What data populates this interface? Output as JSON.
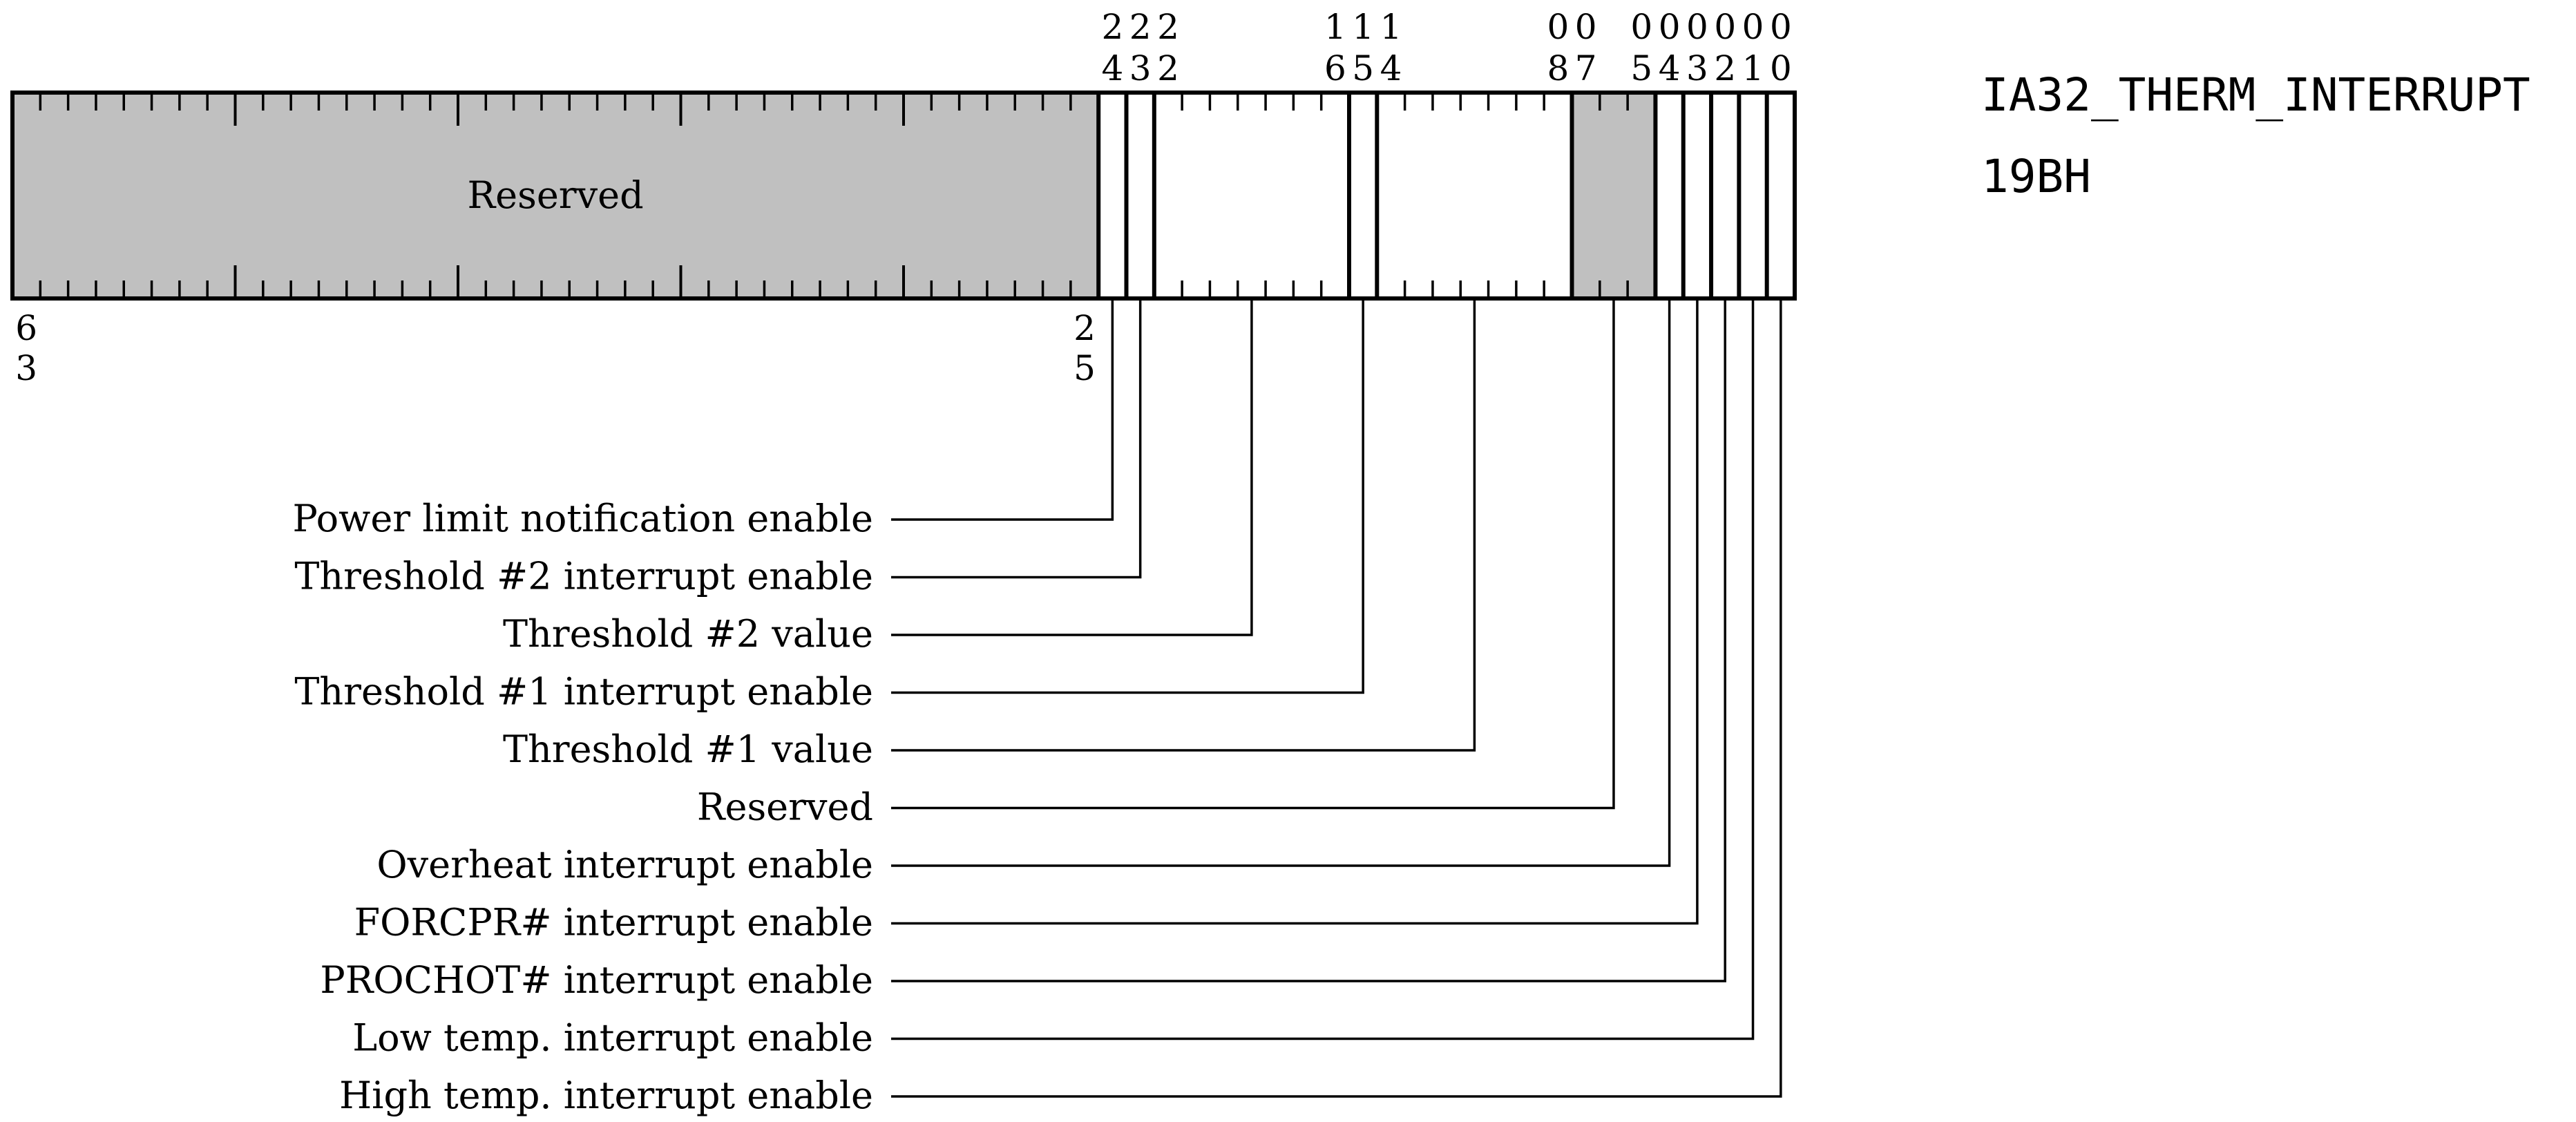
{
  "register": {
    "name": "IA32_THERM_INTERRUPT",
    "address": "19BH",
    "width_bits": 64
  },
  "top_bit_labels": [
    {
      "bit": 24,
      "digits": [
        "2",
        "4"
      ]
    },
    {
      "bit": 23,
      "digits": [
        "2",
        "3"
      ]
    },
    {
      "bit": 22,
      "digits": [
        "2",
        "2"
      ]
    },
    {
      "bit": 16,
      "digits": [
        "1",
        "6"
      ]
    },
    {
      "bit": 15,
      "digits": [
        "1",
        "5"
      ]
    },
    {
      "bit": 14,
      "digits": [
        "1",
        "4"
      ]
    },
    {
      "bit": 8,
      "digits": [
        "0",
        "8"
      ]
    },
    {
      "bit": 7,
      "digits": [
        "0",
        "7"
      ]
    },
    {
      "bit": 5,
      "digits": [
        "0",
        "5"
      ]
    },
    {
      "bit": 4,
      "digits": [
        "0",
        "4"
      ]
    },
    {
      "bit": 3,
      "digits": [
        "0",
        "3"
      ]
    },
    {
      "bit": 2,
      "digits": [
        "0",
        "2"
      ]
    },
    {
      "bit": 1,
      "digits": [
        "0",
        "1"
      ]
    },
    {
      "bit": 0,
      "digits": [
        "0",
        "0"
      ]
    }
  ],
  "bottom_bit_labels": [
    {
      "bit": 63,
      "digits": [
        "6",
        "3"
      ]
    },
    {
      "bit": 25,
      "digits": [
        "2",
        "5"
      ]
    }
  ],
  "fields": [
    {
      "hi": 63,
      "lo": 25,
      "label": "Reserved",
      "shaded": true,
      "inline_label": true
    },
    {
      "hi": 24,
      "lo": 24,
      "label": "Power limit notification enable",
      "shaded": false
    },
    {
      "hi": 23,
      "lo": 23,
      "label": "Threshold #2 interrupt enable",
      "shaded": false
    },
    {
      "hi": 22,
      "lo": 16,
      "label": "Threshold #2 value",
      "shaded": false
    },
    {
      "hi": 15,
      "lo": 15,
      "label": "Threshold #1 interrupt enable",
      "shaded": false
    },
    {
      "hi": 14,
      "lo": 8,
      "label": "Threshold #1 value",
      "shaded": false
    },
    {
      "hi": 7,
      "lo": 5,
      "label": "Reserved",
      "shaded": true
    },
    {
      "hi": 4,
      "lo": 4,
      "label": "Overheat interrupt enable",
      "shaded": false
    },
    {
      "hi": 3,
      "lo": 3,
      "label": "FORCPR# interrupt enable",
      "shaded": false
    },
    {
      "hi": 2,
      "lo": 2,
      "label": "PROCHOT# interrupt enable",
      "shaded": false
    },
    {
      "hi": 1,
      "lo": 1,
      "label": "Low temp. interrupt enable",
      "shaded": false
    },
    {
      "hi": 0,
      "lo": 0,
      "label": "High temp. interrupt enable",
      "shaded": false
    }
  ],
  "callouts": [
    {
      "label": "Power limit notification enable",
      "bit": 24
    },
    {
      "label": "Threshold #2 interrupt enable",
      "bit": 23
    },
    {
      "label": "Threshold #2 value",
      "bit": 19
    },
    {
      "label": "Threshold #1 interrupt enable",
      "bit": 15
    },
    {
      "label": "Threshold #1 value",
      "bit": 11
    },
    {
      "label": "Reserved",
      "bit": 6
    },
    {
      "label": "Overheat interrupt enable",
      "bit": 4
    },
    {
      "label": "FORCPR# interrupt enable",
      "bit": 3
    },
    {
      "label": "PROCHOT# interrupt enable",
      "bit": 2
    },
    {
      "label": "Low temp. interrupt enable",
      "bit": 1
    },
    {
      "label": "High temp. interrupt enable",
      "bit": 0
    }
  ],
  "colors": {
    "shade": "#c0c0c0",
    "line": "#000000",
    "background": "#ffffff"
  }
}
